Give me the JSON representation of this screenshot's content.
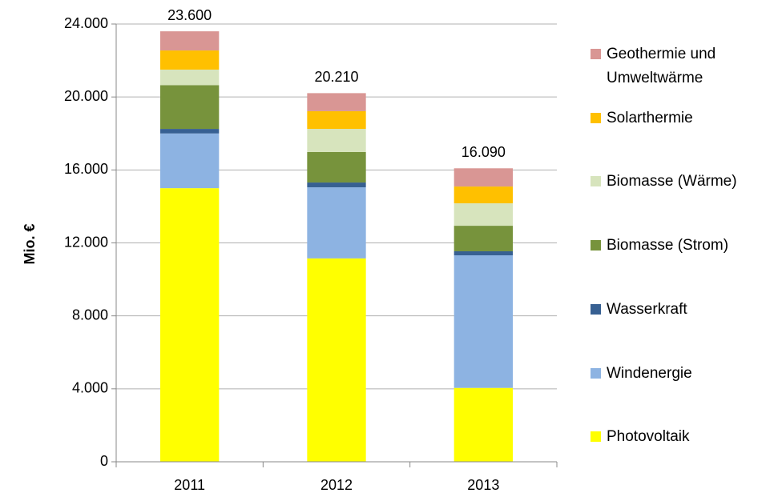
{
  "chart_data": {
    "type": "stacked_bar",
    "y_label": "Mio. €",
    "categories": [
      "2011",
      "2012",
      "2013"
    ],
    "series": [
      {
        "name": "Photovoltaik",
        "color": "#ffff00",
        "values": [
          15000,
          11150,
          4050
        ]
      },
      {
        "name": "Windenergie",
        "color": "#8db3e2",
        "values": [
          3000,
          3900,
          7270
        ]
      },
      {
        "name": "Wasserkraft",
        "color": "#376092",
        "values": [
          250,
          260,
          220
        ]
      },
      {
        "name": "Biomasse (Strom)",
        "color": "#77933c",
        "values": [
          2400,
          1670,
          1400
        ]
      },
      {
        "name": "Biomasse (Wärme)",
        "color": "#d7e4bd",
        "values": [
          850,
          1270,
          1230
        ]
      },
      {
        "name": "Solarthermie",
        "color": "#ffc000",
        "values": [
          1050,
          970,
          920
        ]
      },
      {
        "name": "Geothermie und Umweltwärme",
        "color": "#d99694",
        "values": [
          1050,
          990,
          1000
        ]
      }
    ],
    "totals": {
      "values": [
        23600,
        20210,
        16090
      ],
      "value_labels": [
        "23.600",
        "20.210",
        "16.090"
      ]
    },
    "ylim": [
      0,
      24000
    ],
    "yticks": [
      0,
      {
        "value": 4000,
        "label": "4.000"
      },
      {
        "value": 8000,
        "label": "8.000"
      },
      {
        "value": 12000,
        "label": "12.000"
      },
      {
        "value": 16000,
        "label": "16.000"
      },
      {
        "value": 20000,
        "label": "20.000"
      },
      {
        "value": 24000,
        "label": "24.000"
      }
    ],
    "grid": true,
    "legend": "right"
  }
}
